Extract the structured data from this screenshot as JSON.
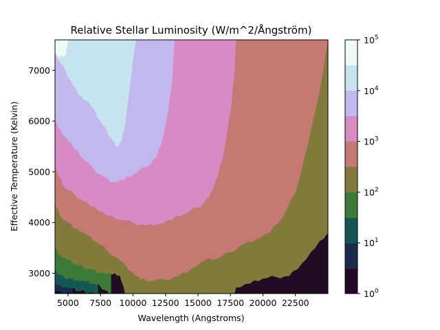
{
  "chart_data": {
    "type": "heatmap",
    "subtype": "filled-contour",
    "title": "Relative Stellar Luminosity (W/m^2/Ångström)",
    "xlabel": "Wavelength (Angstroms)",
    "ylabel": "Effective Temperature (Kelvin)",
    "xlim": [
      4000,
      25000
    ],
    "ylim": [
      2600,
      7600
    ],
    "x_ticks": [
      5000,
      7500,
      10000,
      12500,
      15000,
      17500,
      20000,
      22500
    ],
    "x_tick_labels": [
      "5000",
      "7500",
      "10000",
      "12500",
      "15000",
      "17500",
      "20000",
      "22500"
    ],
    "y_ticks": [
      3000,
      4000,
      5000,
      6000,
      7000
    ],
    "y_tick_labels": [
      "3000",
      "4000",
      "5000",
      "6000",
      "7000"
    ],
    "colorbar": {
      "scale": "log",
      "range": [
        1,
        100000
      ],
      "levels": [
        1,
        3.16,
        10,
        31.6,
        100,
        316,
        1000,
        3162,
        10000,
        31623,
        100000
      ],
      "colors": [
        "#200c23",
        "#1b2d4e",
        "#155752",
        "#3c7a38",
        "#817a3b",
        "#c47a73",
        "#d68bc4",
        "#c3b8ee",
        "#c6e4ef",
        "#eefaf5"
      ],
      "tick_values": [
        1,
        10,
        100,
        1000,
        10000,
        100000
      ],
      "tick_bases": [
        "10",
        "10",
        "10",
        "10",
        "10",
        "10"
      ],
      "tick_exponents": [
        "0",
        "1",
        "2",
        "3",
        "4",
        "5"
      ]
    },
    "contour_boundaries": [
      {
        "level": 3.16,
        "points": [
          [
            4000,
            2680
          ],
          [
            4300,
            2640
          ],
          [
            4700,
            2620
          ],
          [
            5300,
            2600
          ]
        ]
      },
      {
        "level": 10,
        "points": [
          [
            4000,
            2820
          ],
          [
            4300,
            2760
          ],
          [
            4800,
            2740
          ],
          [
            5300,
            2700
          ],
          [
            5800,
            2650
          ],
          [
            6300,
            2640
          ],
          [
            6700,
            2620
          ],
          [
            7300,
            2600
          ]
        ]
      },
      {
        "level": 31.6,
        "points": [
          [
            4000,
            3060
          ],
          [
            4300,
            2980
          ],
          [
            4700,
            2920
          ],
          [
            5200,
            2900
          ],
          [
            5700,
            2870
          ],
          [
            6300,
            2840
          ],
          [
            7000,
            2800
          ],
          [
            7500,
            2740
          ],
          [
            7900,
            2660
          ],
          [
            8300,
            2600
          ]
        ]
      },
      {
        "level": 100,
        "points": [
          [
            4000,
            3520
          ],
          [
            4400,
            3360
          ],
          [
            5000,
            3260
          ],
          [
            5600,
            3180
          ],
          [
            6200,
            3120
          ],
          [
            6800,
            3080
          ],
          [
            7600,
            3020
          ],
          [
            8400,
            2980
          ],
          [
            9000,
            2960
          ],
          [
            9400,
            2600
          ],
          [
            17800,
            2600
          ],
          [
            17900,
            2720
          ],
          [
            19000,
            2800
          ],
          [
            20000,
            2900
          ],
          [
            21000,
            2930
          ],
          [
            22000,
            2950
          ],
          [
            23000,
            3200
          ],
          [
            24000,
            3500
          ],
          [
            25000,
            3800
          ]
        ]
      },
      {
        "level": 316,
        "points": [
          [
            4000,
            4380
          ],
          [
            4400,
            4140
          ],
          [
            5000,
            4000
          ],
          [
            5700,
            3880
          ],
          [
            6400,
            3760
          ],
          [
            7200,
            3620
          ],
          [
            8000,
            3460
          ],
          [
            9000,
            3260
          ],
          [
            10000,
            3020
          ],
          [
            10600,
            2880
          ],
          [
            11300,
            2850
          ],
          [
            12500,
            2880
          ],
          [
            13500,
            2950
          ],
          [
            14500,
            3100
          ],
          [
            15500,
            3250
          ],
          [
            16500,
            3300
          ],
          [
            17500,
            3420
          ],
          [
            18500,
            3580
          ],
          [
            19500,
            3680
          ],
          [
            20500,
            3800
          ],
          [
            21500,
            4100
          ],
          [
            22500,
            4600
          ],
          [
            23500,
            5600
          ],
          [
            24500,
            6800
          ],
          [
            25000,
            7600
          ]
        ]
      },
      {
        "level": 1000,
        "points": [
          [
            4000,
            5120
          ],
          [
            4300,
            4900
          ],
          [
            4800,
            4680
          ],
          [
            5500,
            4560
          ],
          [
            6200,
            4420
          ],
          [
            7000,
            4320
          ],
          [
            8000,
            4140
          ],
          [
            9000,
            4060
          ],
          [
            10000,
            4000
          ],
          [
            11000,
            3950
          ],
          [
            12000,
            3980
          ],
          [
            13000,
            4060
          ],
          [
            14000,
            4180
          ],
          [
            15000,
            4300
          ],
          [
            15500,
            4400
          ],
          [
            16000,
            4600
          ],
          [
            16500,
            4900
          ],
          [
            17000,
            5400
          ],
          [
            17500,
            6200
          ],
          [
            17800,
            7000
          ],
          [
            17900,
            7600
          ]
        ]
      },
      {
        "level": 3162,
        "points": [
          [
            4000,
            6060
          ],
          [
            4300,
            5860
          ],
          [
            4800,
            5700
          ],
          [
            5500,
            5460
          ],
          [
            6200,
            5260
          ],
          [
            7000,
            5050
          ],
          [
            7800,
            4900
          ],
          [
            8500,
            4800
          ],
          [
            9300,
            4850
          ],
          [
            10000,
            4950
          ],
          [
            11000,
            5100
          ],
          [
            11800,
            5300
          ],
          [
            12300,
            5700
          ],
          [
            12700,
            6200
          ],
          [
            13000,
            6800
          ],
          [
            13200,
            7600
          ]
        ]
      },
      {
        "level": 10000,
        "points": [
          [
            4000,
            7350
          ],
          [
            4300,
            7200
          ],
          [
            4800,
            7000
          ],
          [
            5400,
            6700
          ],
          [
            6000,
            6500
          ],
          [
            6800,
            6300
          ],
          [
            7500,
            6000
          ],
          [
            8000,
            5800
          ],
          [
            8500,
            5600
          ],
          [
            8800,
            5500
          ],
          [
            9100,
            5600
          ],
          [
            9400,
            5950
          ],
          [
            9600,
            6400
          ],
          [
            9900,
            7000
          ],
          [
            10200,
            7600
          ]
        ]
      },
      {
        "level": 31623,
        "points": [
          [
            4000,
            7600
          ],
          [
            4000,
            7350
          ],
          [
            4300,
            7250
          ],
          [
            4800,
            7300
          ],
          [
            4900,
            7450
          ],
          [
            5000,
            7600
          ]
        ]
      }
    ]
  }
}
